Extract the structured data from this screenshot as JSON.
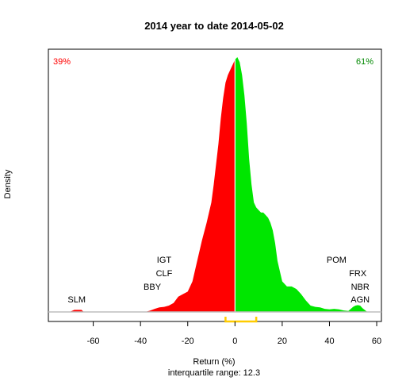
{
  "chart_data": {
    "type": "area",
    "title": "2014  year to date 2014-05-02",
    "xlabel": "Return (%)",
    "ylabel": "Density",
    "subtitle": "interquartile range: 12.3",
    "xlim": [
      -79,
      62
    ],
    "ylim": [
      0,
      1
    ],
    "x_ticks": [
      -60,
      -40,
      -20,
      0,
      20,
      40,
      60
    ],
    "split_at": 0,
    "negative_share_label": "39%",
    "positive_share_label": "61%",
    "interquartile_range": [
      -4,
      9
    ],
    "colors": {
      "negative": "#ff0000",
      "positive": "#00e600",
      "iqr": "#ffcc00",
      "baseline": "#bdbdbd",
      "neg_text": "#ff0000",
      "pos_text": "#008800"
    },
    "density": {
      "x": [
        -70,
        -68,
        -66,
        -65,
        -64,
        -38,
        -36,
        -34,
        -32,
        -30,
        -28,
        -26,
        -24,
        -22,
        -20,
        -18,
        -16,
        -14,
        -12,
        -10,
        -9,
        -8,
        -7,
        -6,
        -5,
        -4,
        -3,
        -2,
        -1,
        0,
        1,
        2,
        3,
        4,
        5,
        6,
        7,
        8,
        9,
        10,
        11,
        12,
        13,
        14,
        15,
        16,
        17,
        18,
        20,
        22,
        24,
        26,
        28,
        30,
        32,
        34,
        36,
        38,
        40,
        42,
        44,
        46,
        48,
        50,
        51,
        52,
        53,
        54,
        56,
        58
      ],
      "y": [
        0,
        0.008,
        0.008,
        0.008,
        0,
        0,
        0.005,
        0.012,
        0.018,
        0.02,
        0.025,
        0.035,
        0.06,
        0.07,
        0.08,
        0.12,
        0.2,
        0.28,
        0.35,
        0.43,
        0.5,
        0.58,
        0.66,
        0.76,
        0.84,
        0.9,
        0.93,
        0.95,
        0.97,
        0.99,
        1.0,
        0.98,
        0.93,
        0.85,
        0.74,
        0.6,
        0.5,
        0.43,
        0.41,
        0.4,
        0.39,
        0.39,
        0.38,
        0.37,
        0.35,
        0.32,
        0.27,
        0.2,
        0.12,
        0.1,
        0.1,
        0.09,
        0.07,
        0.045,
        0.025,
        0.02,
        0.018,
        0.012,
        0.01,
        0.012,
        0.01,
        0.006,
        0.004,
        0.02,
        0.025,
        0.027,
        0.025,
        0.015,
        0,
        0
      ]
    },
    "labels_left": [
      {
        "text": "SLM",
        "x": -67,
        "row": 0
      },
      {
        "text": "BBY",
        "x": -35,
        "row": 1
      },
      {
        "text": "CLF",
        "x": -30,
        "row": 2
      },
      {
        "text": "IGT",
        "x": -30,
        "row": 3
      }
    ],
    "labels_right": [
      {
        "text": "AGN",
        "x": 53,
        "row": 0
      },
      {
        "text": "NBR",
        "x": 53,
        "row": 1
      },
      {
        "text": "FRX",
        "x": 52,
        "row": 2
      },
      {
        "text": "POM",
        "x": 43,
        "row": 3
      }
    ]
  }
}
